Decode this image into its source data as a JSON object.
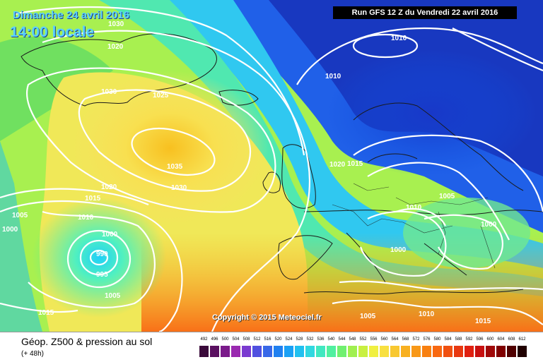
{
  "header": {
    "date": "Dimanche 24 avril 2016",
    "time": "14:00 locale",
    "run": "Run GFS 12 Z du Vendredi 22 avril 2016"
  },
  "copyright": "Copyright © 2015 Meteociel.fr",
  "legend": {
    "title": "Géop. Z500 & pression au sol",
    "subtitle": "(+ 48h)",
    "ticks": [
      "492",
      "496",
      "500",
      "504",
      "508",
      "512",
      "516",
      "520",
      "524",
      "528",
      "532",
      "536",
      "540",
      "544",
      "548",
      "552",
      "556",
      "560",
      "564",
      "568",
      "572",
      "576",
      "580",
      "584",
      "588",
      "592",
      "596",
      "600",
      "604",
      "608",
      "612"
    ],
    "colors": [
      "#3a0a3a",
      "#5a1060",
      "#7a1a8a",
      "#9a2ab0",
      "#7a3ad0",
      "#5050e0",
      "#3868e8",
      "#2080f0",
      "#1aa0f5",
      "#20c0f0",
      "#30d8e0",
      "#40e8c0",
      "#50f0a0",
      "#70f070",
      "#a0f050",
      "#c8f040",
      "#f0f040",
      "#f8e040",
      "#f8c830",
      "#f8b020",
      "#f89818",
      "#f88010",
      "#f86810",
      "#f05010",
      "#e83810",
      "#e02010",
      "#c81010",
      "#a00808",
      "#800000",
      "#500000",
      "#200000"
    ]
  },
  "isobars": {
    "labels": [
      "1030",
      "1020",
      "1030",
      "1025",
      "1035",
      "1030",
      "1020",
      "1015",
      "1010",
      "1005",
      "1000",
      "1000",
      "990",
      "995",
      "1005",
      "1015",
      "1010",
      "1010",
      "1020",
      "1015",
      "1005",
      "1010",
      "1000",
      "1000",
      "1010",
      "1005",
      "1015"
    ]
  }
}
